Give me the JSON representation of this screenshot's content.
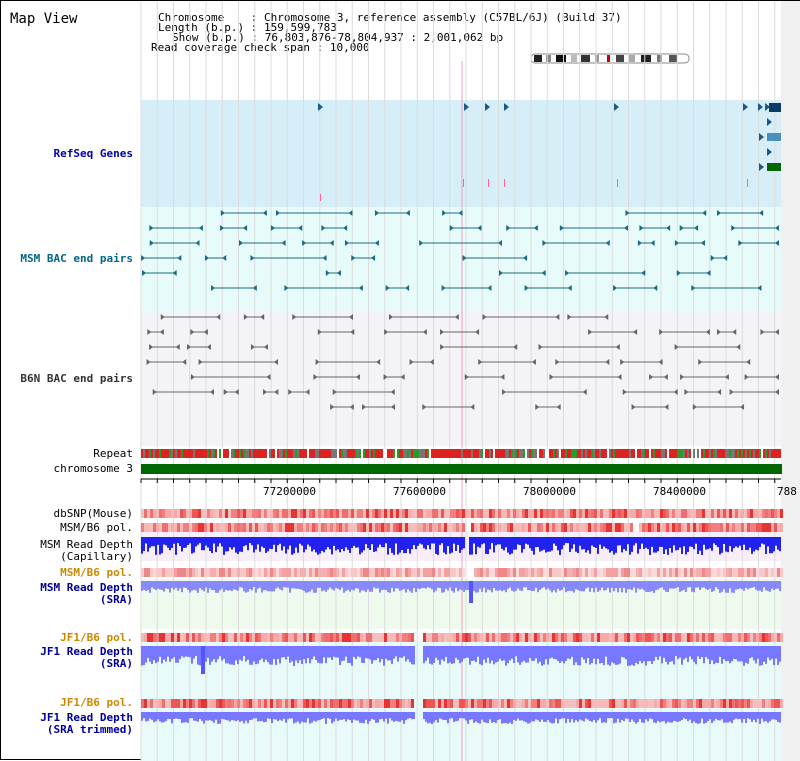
{
  "title": "Map View",
  "info": {
    "chromosome_label": "Chromosome",
    "chromosome_value": "Chromosome 3, reference assembly (C57BL/6J) (Build 37)",
    "length_label": "Length (b.p.)",
    "length_value": "159,599,783",
    "show_label": "Show (b.p.)",
    "show_value": "76,803,876-78,804,937 : 2,001,062 bp",
    "coverage_label": "Read coverage check span",
    "coverage_value": "10,000"
  },
  "tracks": {
    "refseq": "RefSeq Genes",
    "msm_bac": "MSM BAC end pairs",
    "b6n_bac": "B6N BAC end pairs",
    "repeat": "Repeat",
    "chromosome": "chromosome 3",
    "dbsnp": "dbSNP(Mouse)",
    "msm_b6_pol": "MSM/B6 pol.",
    "msm_depth_cap_1": "MSM Read Depth",
    "msm_depth_cap_2": "(Capillary)",
    "msm_b6_pol_2": "MSM/B6 pol.",
    "msm_depth_sra_1": "MSM Read Depth",
    "msm_depth_sra_2": "(SRA)",
    "jf1_b6_pol": "JF1/B6 pol.",
    "jf1_depth_sra_1": "JF1 Read Depth",
    "jf1_depth_sra_2": "(SRA)",
    "jf1_b6_pol_2": "JF1/B6 pol.",
    "jf1_depth_trim_1": "JF1 Read Depth",
    "jf1_depth_trim_2": "(SRA trimmed)"
  },
  "axis": {
    "ticks": [
      "77200000",
      "77600000",
      "78000000",
      "78400000",
      "788"
    ]
  },
  "colors": {
    "refseq_bg": "#d6eef8",
    "msm_bg": "#e8fbfb",
    "b6n_bg": "#f4f4f8",
    "label_blue": "#000099",
    "label_orange": "#cc8800",
    "refseq_label": "#0000aa",
    "msm_label": "#006688",
    "b6n_label": "#333333",
    "chromosome_green": "#006600"
  }
}
